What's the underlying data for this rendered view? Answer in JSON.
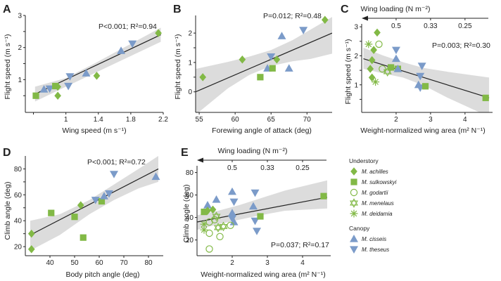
{
  "colors": {
    "understory": "#82b946",
    "canopy": "#7b9bc9",
    "band": "#dcdcdc",
    "line": "#222222"
  },
  "legend": {
    "groups": [
      {
        "name": "Understory",
        "items": [
          {
            "label": "M. achilles",
            "marker": "diamond"
          },
          {
            "label": "M. sulkowskyi",
            "marker": "square"
          },
          {
            "label": "M. godartii",
            "marker": "circle-open"
          },
          {
            "label": "M. menelaus",
            "marker": "star-of-david"
          },
          {
            "label": "M. deidamia",
            "marker": "asterisk"
          }
        ]
      },
      {
        "name": "Canopy",
        "items": [
          {
            "label": "M. cisseis",
            "marker": "triangle-up"
          },
          {
            "label": "M. theseus",
            "marker": "triangle-down"
          }
        ]
      }
    ]
  },
  "chart_data": [
    {
      "panel": "A",
      "type": "scatter",
      "xlabel": "Wing speed (m s⁻¹)",
      "ylabel": "Flight speed (m s⁻¹)",
      "stat_text": {
        "p": "P<0.001; ",
        "r2": "R²=0.94"
      },
      "xlim": [
        0.5,
        2.2
      ],
      "ylim": [
        -0.02,
        3.0
      ],
      "xticks": [
        0.6,
        1.0,
        1.4,
        1.8,
        2.2
      ],
      "xticklabels": [
        "",
        "1",
        "1.4",
        "1.8",
        "2.2"
      ],
      "yticks": [
        0.5,
        1.0,
        1.5,
        2.0,
        2.5,
        3.0
      ],
      "yticklabels": [
        "",
        "1",
        "",
        "2",
        "",
        "3"
      ],
      "fit": {
        "x": [
          0.62,
          2.17
        ],
        "y": [
          0.55,
          2.4
        ]
      },
      "band": {
        "x": [
          0.62,
          1.0,
          1.35,
          1.7,
          2.17
        ],
        "upper": [
          0.78,
          1.05,
          1.5,
          1.98,
          2.62
        ],
        "lower": [
          0.32,
          0.78,
          1.2,
          1.62,
          2.18
        ]
      },
      "points": [
        {
          "x": 0.63,
          "y": 0.5,
          "marker": "square",
          "group": "understory"
        },
        {
          "x": 0.73,
          "y": 0.7,
          "marker": "triangle-up",
          "group": "canopy"
        },
        {
          "x": 0.8,
          "y": 0.72,
          "marker": "triangle-down",
          "group": "canopy"
        },
        {
          "x": 0.87,
          "y": 0.8,
          "marker": "square",
          "group": "understory"
        },
        {
          "x": 0.9,
          "y": 0.5,
          "marker": "diamond",
          "group": "understory"
        },
        {
          "x": 0.9,
          "y": 0.78,
          "marker": "diamond",
          "group": "understory"
        },
        {
          "x": 1.03,
          "y": 0.8,
          "marker": "triangle-down",
          "group": "canopy"
        },
        {
          "x": 1.05,
          "y": 1.1,
          "marker": "triangle-down",
          "group": "canopy"
        },
        {
          "x": 1.25,
          "y": 1.2,
          "marker": "triangle-up",
          "group": "canopy"
        },
        {
          "x": 1.38,
          "y": 1.12,
          "marker": "diamond",
          "group": "understory"
        },
        {
          "x": 1.68,
          "y": 1.9,
          "marker": "triangle-up",
          "group": "canopy"
        },
        {
          "x": 1.82,
          "y": 2.12,
          "marker": "triangle-down",
          "group": "canopy"
        },
        {
          "x": 2.14,
          "y": 2.45,
          "marker": "diamond",
          "group": "understory"
        }
      ]
    },
    {
      "panel": "B",
      "type": "scatter",
      "xlabel": "Forewing angle of attack (deg)",
      "ylabel": "Flight speed (m s⁻¹)",
      "stat_text": {
        "p": "P=0.012; ",
        "r2": "R²=0.48"
      },
      "xlim": [
        54.5,
        73.5
      ],
      "ylim": [
        -0.7,
        2.6
      ],
      "xticks": [
        55,
        60,
        65,
        70
      ],
      "xticklabels": [
        "55",
        "60",
        "65",
        "70"
      ],
      "yticks": [
        0,
        0.5,
        1.0,
        1.5,
        2.0
      ],
      "yticklabels": [
        "0",
        "",
        "1",
        "",
        "2"
      ],
      "fit": {
        "x": [
          54.5,
          73.5
        ],
        "y": [
          0.0,
          2.0
        ]
      },
      "band": {
        "x": [
          54.5,
          59,
          62,
          65,
          68,
          70.5,
          73.5
        ],
        "upper": [
          0.78,
          1.02,
          1.2,
          1.42,
          1.76,
          2.12,
          2.55
        ],
        "lower": [
          -0.78,
          0.12,
          0.58,
          0.88,
          1.04,
          1.12,
          1.3
        ]
      },
      "points": [
        {
          "x": 55.5,
          "y": 0.5,
          "marker": "diamond",
          "group": "understory"
        },
        {
          "x": 61,
          "y": 1.1,
          "marker": "diamond",
          "group": "understory"
        },
        {
          "x": 63.5,
          "y": 0.5,
          "marker": "square",
          "group": "understory"
        },
        {
          "x": 64.5,
          "y": 0.8,
          "marker": "triangle-up",
          "group": "canopy"
        },
        {
          "x": 65.2,
          "y": 0.8,
          "marker": "square",
          "group": "understory"
        },
        {
          "x": 65,
          "y": 1.2,
          "marker": "triangle-down",
          "group": "canopy"
        },
        {
          "x": 65.8,
          "y": 1.1,
          "marker": "diamond",
          "group": "understory"
        },
        {
          "x": 66.5,
          "y": 1.9,
          "marker": "triangle-up",
          "group": "canopy"
        },
        {
          "x": 67.5,
          "y": 0.8,
          "marker": "triangle-up",
          "group": "canopy"
        },
        {
          "x": 69.5,
          "y": 2.1,
          "marker": "triangle-down",
          "group": "canopy"
        },
        {
          "x": 72.5,
          "y": 2.45,
          "marker": "diamond",
          "group": "understory"
        }
      ]
    },
    {
      "panel": "C",
      "type": "scatter",
      "xlabel": "Weight-normalized wing area (m² N⁻¹)",
      "ylabel": "Flight speed (m s⁻¹)",
      "stat_text": {
        "p": "P=0.003; ",
        "r2": "R²=0.30"
      },
      "top_axis": {
        "title": "Wing loading (N m⁻²)",
        "ticks": [
          2,
          3,
          4
        ],
        "ticklabels": [
          "0.5",
          "0.33",
          "0.25"
        ]
      },
      "xlim": [
        1.0,
        4.8
      ],
      "ylim": [
        0.05,
        3.1
      ],
      "xticks": [
        2,
        3,
        4
      ],
      "xticklabels": [
        "2",
        "3",
        "4"
      ],
      "yticks": [
        0.5,
        1.0,
        1.5,
        2.0,
        2.5,
        3.0
      ],
      "yticklabels": [
        "",
        "1",
        "",
        "2",
        "",
        "3"
      ],
      "fit": {
        "x": [
          1.05,
          4.7
        ],
        "y": [
          1.9,
          0.55
        ]
      },
      "band": {
        "x": [
          1.05,
          1.6,
          2.2,
          2.8,
          3.5,
          4.7
        ],
        "upper": [
          2.28,
          2.02,
          1.78,
          1.58,
          1.45,
          1.25
        ],
        "lower": [
          1.55,
          1.4,
          1.25,
          0.98,
          0.55,
          -0.1
        ]
      },
      "points": [
        {
          "x": 1.45,
          "y": 2.8,
          "marker": "diamond",
          "group": "understory"
        },
        {
          "x": 1.2,
          "y": 2.4,
          "marker": "asterisk",
          "group": "understory"
        },
        {
          "x": 1.5,
          "y": 2.4,
          "marker": "circle-open",
          "group": "understory"
        },
        {
          "x": 1.35,
          "y": 2.2,
          "marker": "diamond",
          "group": "understory"
        },
        {
          "x": 1.3,
          "y": 1.85,
          "marker": "diamond",
          "group": "understory"
        },
        {
          "x": 1.25,
          "y": 1.55,
          "marker": "diamond",
          "group": "understory"
        },
        {
          "x": 1.3,
          "y": 1.25,
          "marker": "diamond",
          "group": "understory"
        },
        {
          "x": 1.4,
          "y": 1.1,
          "marker": "asterisk",
          "group": "understory"
        },
        {
          "x": 1.6,
          "y": 1.55,
          "marker": "circle-open",
          "group": "understory"
        },
        {
          "x": 1.75,
          "y": 1.45,
          "marker": "star-of-david",
          "group": "understory"
        },
        {
          "x": 1.85,
          "y": 1.6,
          "marker": "square",
          "group": "understory"
        },
        {
          "x": 2.0,
          "y": 2.2,
          "marker": "triangle-down",
          "group": "canopy"
        },
        {
          "x": 2.0,
          "y": 1.9,
          "marker": "triangle-up",
          "group": "canopy"
        },
        {
          "x": 2.05,
          "y": 1.55,
          "marker": "square",
          "group": "understory"
        },
        {
          "x": 2.05,
          "y": 1.55,
          "marker": "triangle-up",
          "group": "canopy"
        },
        {
          "x": 2.75,
          "y": 1.65,
          "marker": "triangle-down",
          "group": "canopy"
        },
        {
          "x": 2.7,
          "y": 1.3,
          "marker": "triangle-down",
          "group": "canopy"
        },
        {
          "x": 2.65,
          "y": 1.0,
          "marker": "triangle-up",
          "group": "canopy"
        },
        {
          "x": 2.7,
          "y": 0.9,
          "marker": "triangle-down",
          "group": "canopy"
        },
        {
          "x": 2.85,
          "y": 0.95,
          "marker": "square",
          "group": "understory"
        },
        {
          "x": 4.6,
          "y": 0.55,
          "marker": "square",
          "group": "understory"
        }
      ]
    },
    {
      "panel": "D",
      "type": "scatter",
      "xlabel": "Body pitch angle (deg)",
      "ylabel": "Climb angle (deg)",
      "stat_text": {
        "p": "P<0.001; ",
        "r2": "R²=0.72"
      },
      "xlim": [
        30,
        86
      ],
      "ylim": [
        13,
        90
      ],
      "xticks": [
        40,
        50,
        60,
        70,
        80
      ],
      "xticklabels": [
        "40",
        "50",
        "60",
        "70",
        "80"
      ],
      "yticks": [
        20,
        30,
        40,
        50,
        60,
        70,
        80
      ],
      "yticklabels": [
        "20",
        "",
        "40",
        "",
        "60",
        "",
        "80"
      ],
      "fit": {
        "x": [
          32,
          84
        ],
        "y": [
          29,
          80
        ]
      },
      "band": {
        "x": [
          32,
          44,
          56,
          66,
          76,
          84
        ],
        "upper": [
          40,
          45,
          56,
          68,
          80,
          90
        ],
        "lower": [
          17,
          29,
          45,
          56,
          65,
          70
        ]
      },
      "points": [
        {
          "x": 32.5,
          "y": 18,
          "marker": "diamond",
          "group": "understory"
        },
        {
          "x": 32.5,
          "y": 30,
          "marker": "diamond",
          "group": "understory"
        },
        {
          "x": 40.5,
          "y": 46,
          "marker": "square",
          "group": "understory"
        },
        {
          "x": 50,
          "y": 43,
          "marker": "square",
          "group": "understory"
        },
        {
          "x": 52.5,
          "y": 52,
          "marker": "diamond",
          "group": "understory"
        },
        {
          "x": 53.5,
          "y": 27,
          "marker": "square",
          "group": "understory"
        },
        {
          "x": 58.5,
          "y": 56,
          "marker": "triangle-down",
          "group": "canopy"
        },
        {
          "x": 61,
          "y": 55,
          "marker": "square",
          "group": "understory"
        },
        {
          "x": 62,
          "y": 59,
          "marker": "triangle-up",
          "group": "canopy"
        },
        {
          "x": 64,
          "y": 61,
          "marker": "triangle-down",
          "group": "canopy"
        },
        {
          "x": 66,
          "y": 76,
          "marker": "triangle-down",
          "group": "canopy"
        },
        {
          "x": 83,
          "y": 74,
          "marker": "triangle-up",
          "group": "canopy"
        }
      ]
    },
    {
      "panel": "E",
      "type": "scatter",
      "xlabel": "Weight-normalized wing area (m² N⁻¹)",
      "ylabel": "Climb angle (deg)",
      "stat_text": {
        "p": "P=0.037; ",
        "r2": "R²=0.17"
      },
      "top_axis": {
        "title": "Wing loading (N m⁻²)",
        "ticks": [
          2,
          3,
          4
        ],
        "ticklabels": [
          "0.5",
          "0.33",
          "0.25"
        ]
      },
      "xlim": [
        1.0,
        4.8
      ],
      "ylim": [
        6,
        86
      ],
      "xticks": [
        2,
        3,
        4
      ],
      "xticklabels": [
        "2",
        "3",
        "4"
      ],
      "yticks": [
        20,
        40,
        60,
        80
      ],
      "yticklabels": [
        "20",
        "40",
        "60",
        "80"
      ],
      "fit": {
        "x": [
          1.0,
          4.7
        ],
        "y": [
          36,
          58
        ]
      },
      "band": {
        "x": [
          1.0,
          1.6,
          2.2,
          2.8,
          3.5,
          4.7
        ],
        "upper": [
          42,
          46,
          51,
          57,
          64,
          73
        ],
        "lower": [
          29,
          34,
          38,
          42,
          46,
          48
        ]
      },
      "points": [
        {
          "x": 1.3,
          "y": 51,
          "marker": "triangle-up",
          "group": "canopy"
        },
        {
          "x": 1.3,
          "y": 46,
          "marker": "diamond",
          "group": "understory"
        },
        {
          "x": 1.45,
          "y": 47,
          "marker": "diamond",
          "group": "understory"
        },
        {
          "x": 1.2,
          "y": 45,
          "marker": "square",
          "group": "understory"
        },
        {
          "x": 1.55,
          "y": 56,
          "marker": "triangle-up",
          "group": "canopy"
        },
        {
          "x": 1.55,
          "y": 41,
          "marker": "star-of-david",
          "group": "understory"
        },
        {
          "x": 1.5,
          "y": 38,
          "marker": "circle-open",
          "group": "understory"
        },
        {
          "x": 1.2,
          "y": 34,
          "marker": "asterisk",
          "group": "understory"
        },
        {
          "x": 1.35,
          "y": 36,
          "marker": "circle-open",
          "group": "understory"
        },
        {
          "x": 1.2,
          "y": 29,
          "marker": "asterisk",
          "group": "understory"
        },
        {
          "x": 1.35,
          "y": 26,
          "marker": "circle-open",
          "group": "understory"
        },
        {
          "x": 1.65,
          "y": 23,
          "marker": "circle-open",
          "group": "understory"
        },
        {
          "x": 1.35,
          "y": 12,
          "marker": "circle-open",
          "group": "understory"
        },
        {
          "x": 1.6,
          "y": 31,
          "marker": "star-of-david",
          "group": "understory"
        },
        {
          "x": 1.75,
          "y": 32,
          "marker": "star-of-david",
          "group": "understory"
        },
        {
          "x": 2.0,
          "y": 63,
          "marker": "triangle-up",
          "group": "canopy"
        },
        {
          "x": 2.05,
          "y": 54,
          "marker": "triangle-down",
          "group": "canopy"
        },
        {
          "x": 2.0,
          "y": 44,
          "marker": "triangle-up",
          "group": "canopy"
        },
        {
          "x": 2.0,
          "y": 39,
          "marker": "triangle-down",
          "group": "canopy"
        },
        {
          "x": 2.05,
          "y": 36,
          "marker": "triangle-up",
          "group": "canopy"
        },
        {
          "x": 1.95,
          "y": 33,
          "marker": "circle-open",
          "group": "understory"
        },
        {
          "x": 2.65,
          "y": 62,
          "marker": "triangle-down",
          "group": "canopy"
        },
        {
          "x": 2.6,
          "y": 50,
          "marker": "triangle-up",
          "group": "canopy"
        },
        {
          "x": 2.65,
          "y": 37,
          "marker": "triangle-down",
          "group": "canopy"
        },
        {
          "x": 2.7,
          "y": 28,
          "marker": "triangle-down",
          "group": "canopy"
        },
        {
          "x": 2.8,
          "y": 41,
          "marker": "square",
          "group": "understory"
        },
        {
          "x": 4.6,
          "y": 59,
          "marker": "square",
          "group": "understory"
        }
      ]
    }
  ]
}
